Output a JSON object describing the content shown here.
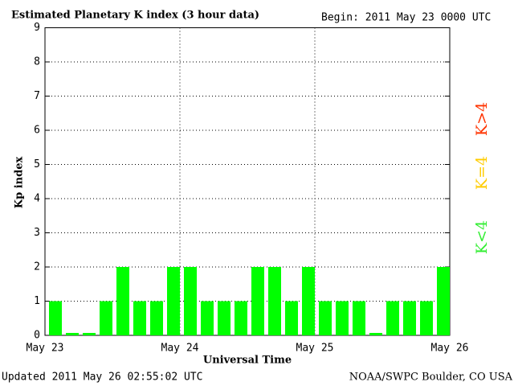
{
  "chart_data": {
    "type": "bar",
    "title": "Estimated Planetary K index (3 hour data)",
    "subtitle": "Begin:  2011 May 23 0000 UTC",
    "y_label": "Kp index",
    "x_label": "Universal Time",
    "xticks": [
      "May 23",
      "May 24",
      "May 25",
      "May 26"
    ],
    "values": [
      1,
      0,
      0,
      1,
      2,
      1,
      1,
      2,
      2,
      1,
      1,
      1,
      2,
      2,
      1,
      2,
      1,
      1,
      1,
      0,
      1,
      1,
      1,
      2
    ],
    "color": "#00ff00",
    "ylim": [
      0,
      9
    ],
    "yticks": [
      0,
      1,
      2,
      3,
      4,
      5,
      6,
      7,
      8,
      9
    ],
    "grid": true,
    "legend": [
      {
        "label": "K<4",
        "color": "#33ee33"
      },
      {
        "label": "K=4",
        "color": "#ffcc00"
      },
      {
        "label": "K>4",
        "color": "#ff3300"
      }
    ],
    "footer_left": "Updated 2011 May 26 02:55:02 UTC",
    "footer_right": "NOAA/SWPC Boulder, CO USA"
  }
}
